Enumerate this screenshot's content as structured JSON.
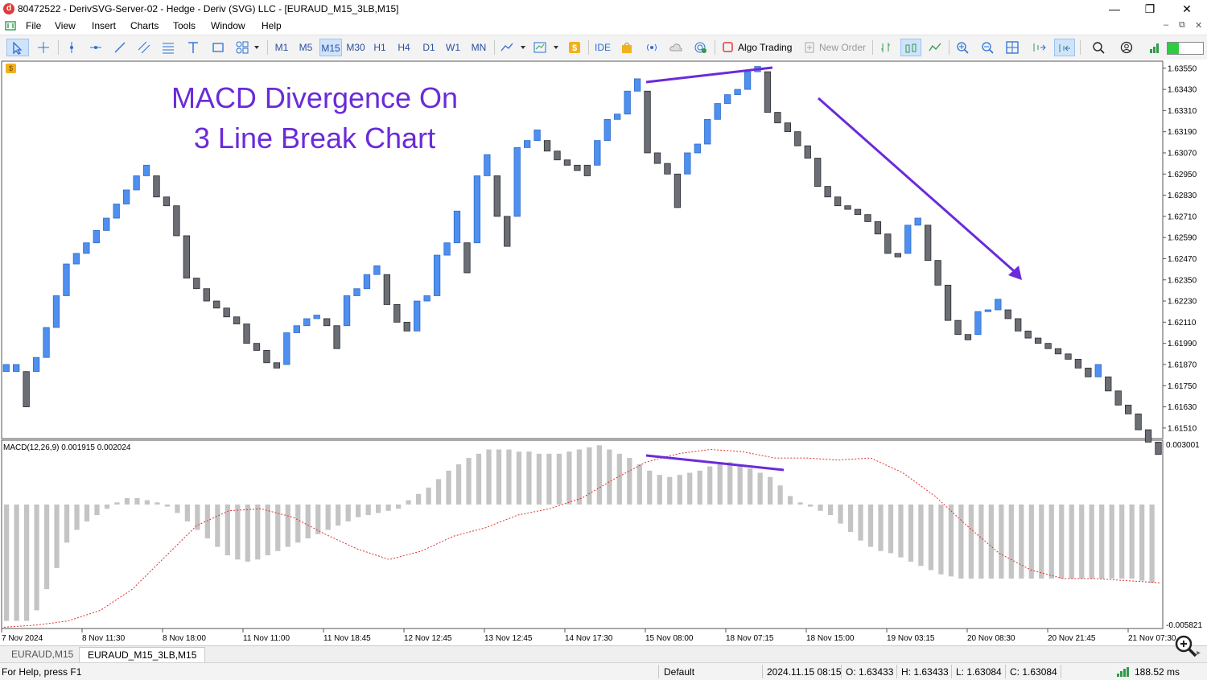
{
  "window": {
    "title": "80472522 - DerivSVG-Server-02 - Hedge - Deriv (SVG) LLC - [EURAUD_M15_3LB,M15]",
    "app_icon_letter": "d",
    "minimize": "—",
    "restore": "❐",
    "close": "✕"
  },
  "menu": {
    "items": [
      "File",
      "View",
      "Insert",
      "Charts",
      "Tools",
      "Window",
      "Help"
    ],
    "mdi_minimize": "–",
    "mdi_restore": "⧉",
    "mdi_close": "✕"
  },
  "toolbar": {
    "timeframes": [
      "M1",
      "M5",
      "M15",
      "M30",
      "H1",
      "H4",
      "D1",
      "W1",
      "MN"
    ],
    "active_timeframe": "M15",
    "ide_label": "IDE",
    "algo_trading_label": "Algo Trading",
    "new_order_label": "New Order"
  },
  "chart": {
    "annotation_line1": "MACD Divergence On",
    "annotation_line2": "3 Line Break Chart",
    "annotation_color": "#6a2bd9",
    "bull_color": "#4f8ff0",
    "bear_color": "#6c6e75",
    "price_axis": [
      "1.63550",
      "1.63430",
      "1.63310",
      "1.63190",
      "1.63070",
      "1.62950",
      "1.62830",
      "1.62710",
      "1.62590",
      "1.62470",
      "1.62350",
      "1.62230",
      "1.62110",
      "1.61990",
      "1.61870",
      "1.61750",
      "1.61630",
      "1.61510"
    ],
    "macd_label": "MACD(12,26,9) 0.001915 0.002024",
    "macd_axis_top": "0.003001",
    "macd_axis_bottom": "-0.005821",
    "time_axis": [
      "7 Nov 2024",
      "8 Nov 11:30",
      "8 Nov 18:00",
      "11 Nov 11:00",
      "11 Nov 18:45",
      "12 Nov 12:45",
      "13 Nov 12:45",
      "14 Nov 17:30",
      "15 Nov 08:00",
      "18 Nov 07:15",
      "18 Nov 15:00",
      "19 Nov 03:15",
      "20 Nov 08:30",
      "20 Nov 21:45",
      "21 Nov 07:30"
    ]
  },
  "chart_data": {
    "type": "3 line break candlestick with MACD histogram",
    "price_range": [
      1.6145,
      1.6359
    ],
    "bricks": [
      {
        "o": 1.6183,
        "c": 1.6187,
        "dir": "up"
      },
      {
        "o": 1.6187,
        "c": 1.6183,
        "dir": "up"
      },
      {
        "o": 1.6183,
        "c": 1.6163,
        "dir": "down"
      },
      {
        "o": 1.6183,
        "c": 1.6191,
        "dir": "up"
      },
      {
        "o": 1.6191,
        "c": 1.6208,
        "dir": "up"
      },
      {
        "o": 1.6208,
        "c": 1.6226,
        "dir": "up"
      },
      {
        "o": 1.6226,
        "c": 1.6244,
        "dir": "up"
      },
      {
        "o": 1.6244,
        "c": 1.625,
        "dir": "up"
      },
      {
        "o": 1.625,
        "c": 1.6256,
        "dir": "up"
      },
      {
        "o": 1.6256,
        "c": 1.6263,
        "dir": "up"
      },
      {
        "o": 1.6263,
        "c": 1.627,
        "dir": "up"
      },
      {
        "o": 1.627,
        "c": 1.6278,
        "dir": "up"
      },
      {
        "o": 1.6278,
        "c": 1.6286,
        "dir": "up"
      },
      {
        "o": 1.6286,
        "c": 1.6294,
        "dir": "up"
      },
      {
        "o": 1.6294,
        "c": 1.63,
        "dir": "up"
      },
      {
        "o": 1.6294,
        "c": 1.6282,
        "dir": "down"
      },
      {
        "o": 1.6282,
        "c": 1.6277,
        "dir": "down"
      },
      {
        "o": 1.6277,
        "c": 1.626,
        "dir": "down"
      },
      {
        "o": 1.626,
        "c": 1.6236,
        "dir": "down"
      },
      {
        "o": 1.6236,
        "c": 1.623,
        "dir": "down"
      },
      {
        "o": 1.623,
        "c": 1.6223,
        "dir": "down"
      },
      {
        "o": 1.6223,
        "c": 1.6219,
        "dir": "down"
      },
      {
        "o": 1.6219,
        "c": 1.6214,
        "dir": "down"
      },
      {
        "o": 1.6214,
        "c": 1.621,
        "dir": "down"
      },
      {
        "o": 1.621,
        "c": 1.6199,
        "dir": "down"
      },
      {
        "o": 1.6199,
        "c": 1.6195,
        "dir": "down"
      },
      {
        "o": 1.6195,
        "c": 1.6188,
        "dir": "down"
      },
      {
        "o": 1.6188,
        "c": 1.6185,
        "dir": "down"
      },
      {
        "o": 1.6187,
        "c": 1.6205,
        "dir": "up"
      },
      {
        "o": 1.6205,
        "c": 1.6209,
        "dir": "up"
      },
      {
        "o": 1.6209,
        "c": 1.6213,
        "dir": "up"
      },
      {
        "o": 1.6213,
        "c": 1.6215,
        "dir": "up"
      },
      {
        "o": 1.6213,
        "c": 1.6209,
        "dir": "down"
      },
      {
        "o": 1.6209,
        "c": 1.6196,
        "dir": "down"
      },
      {
        "o": 1.6209,
        "c": 1.6226,
        "dir": "up"
      },
      {
        "o": 1.6226,
        "c": 1.623,
        "dir": "up"
      },
      {
        "o": 1.623,
        "c": 1.6238,
        "dir": "up"
      },
      {
        "o": 1.6238,
        "c": 1.6243,
        "dir": "up"
      },
      {
        "o": 1.6238,
        "c": 1.6221,
        "dir": "down"
      },
      {
        "o": 1.6221,
        "c": 1.6211,
        "dir": "down"
      },
      {
        "o": 1.6211,
        "c": 1.6206,
        "dir": "down"
      },
      {
        "o": 1.6206,
        "c": 1.6223,
        "dir": "up"
      },
      {
        "o": 1.6223,
        "c": 1.6226,
        "dir": "up"
      },
      {
        "o": 1.6226,
        "c": 1.6249,
        "dir": "up"
      },
      {
        "o": 1.6249,
        "c": 1.6256,
        "dir": "up"
      },
      {
        "o": 1.6256,
        "c": 1.6274,
        "dir": "up"
      },
      {
        "o": 1.6256,
        "c": 1.6239,
        "dir": "down"
      },
      {
        "o": 1.6256,
        "c": 1.6294,
        "dir": "up"
      },
      {
        "o": 1.6294,
        "c": 1.6306,
        "dir": "up"
      },
      {
        "o": 1.6294,
        "c": 1.6271,
        "dir": "down"
      },
      {
        "o": 1.6271,
        "c": 1.6254,
        "dir": "down"
      },
      {
        "o": 1.6271,
        "c": 1.631,
        "dir": "up"
      },
      {
        "o": 1.631,
        "c": 1.6314,
        "dir": "up"
      },
      {
        "o": 1.6314,
        "c": 1.632,
        "dir": "up"
      },
      {
        "o": 1.6314,
        "c": 1.6308,
        "dir": "down"
      },
      {
        "o": 1.6308,
        "c": 1.6303,
        "dir": "down"
      },
      {
        "o": 1.6303,
        "c": 1.63,
        "dir": "down"
      },
      {
        "o": 1.63,
        "c": 1.6297,
        "dir": "down"
      },
      {
        "o": 1.63,
        "c": 1.6294,
        "dir": "down"
      },
      {
        "o": 1.63,
        "c": 1.6314,
        "dir": "up"
      },
      {
        "o": 1.6314,
        "c": 1.6326,
        "dir": "up"
      },
      {
        "o": 1.6326,
        "c": 1.6329,
        "dir": "up"
      },
      {
        "o": 1.6329,
        "c": 1.6342,
        "dir": "up"
      },
      {
        "o": 1.6342,
        "c": 1.6349,
        "dir": "up"
      },
      {
        "o": 1.6342,
        "c": 1.6307,
        "dir": "down"
      },
      {
        "o": 1.6307,
        "c": 1.6301,
        "dir": "down"
      },
      {
        "o": 1.6301,
        "c": 1.6295,
        "dir": "down"
      },
      {
        "o": 1.6295,
        "c": 1.6276,
        "dir": "down"
      },
      {
        "o": 1.6295,
        "c": 1.6307,
        "dir": "up"
      },
      {
        "o": 1.6307,
        "c": 1.6312,
        "dir": "up"
      },
      {
        "o": 1.6312,
        "c": 1.6326,
        "dir": "up"
      },
      {
        "o": 1.6326,
        "c": 1.6335,
        "dir": "up"
      },
      {
        "o": 1.6335,
        "c": 1.634,
        "dir": "up"
      },
      {
        "o": 1.634,
        "c": 1.6343,
        "dir": "up"
      },
      {
        "o": 1.6343,
        "c": 1.6353,
        "dir": "up"
      },
      {
        "o": 1.6353,
        "c": 1.6356,
        "dir": "up"
      },
      {
        "o": 1.6353,
        "c": 1.633,
        "dir": "down"
      },
      {
        "o": 1.633,
        "c": 1.6324,
        "dir": "down"
      },
      {
        "o": 1.6324,
        "c": 1.6319,
        "dir": "down"
      },
      {
        "o": 1.6319,
        "c": 1.6311,
        "dir": "down"
      },
      {
        "o": 1.6311,
        "c": 1.6304,
        "dir": "down"
      },
      {
        "o": 1.6304,
        "c": 1.6288,
        "dir": "down"
      },
      {
        "o": 1.6288,
        "c": 1.6282,
        "dir": "down"
      },
      {
        "o": 1.6282,
        "c": 1.6277,
        "dir": "down"
      },
      {
        "o": 1.6277,
        "c": 1.6275,
        "dir": "down"
      },
      {
        "o": 1.6275,
        "c": 1.6272,
        "dir": "down"
      },
      {
        "o": 1.6272,
        "c": 1.6268,
        "dir": "down"
      },
      {
        "o": 1.6268,
        "c": 1.6261,
        "dir": "down"
      },
      {
        "o": 1.6261,
        "c": 1.625,
        "dir": "down"
      },
      {
        "o": 1.625,
        "c": 1.6248,
        "dir": "down"
      },
      {
        "o": 1.625,
        "c": 1.6266,
        "dir": "up"
      },
      {
        "o": 1.6266,
        "c": 1.627,
        "dir": "up"
      },
      {
        "o": 1.6266,
        "c": 1.6246,
        "dir": "down"
      },
      {
        "o": 1.6246,
        "c": 1.6232,
        "dir": "down"
      },
      {
        "o": 1.6232,
        "c": 1.6212,
        "dir": "down"
      },
      {
        "o": 1.6212,
        "c": 1.6204,
        "dir": "down"
      },
      {
        "o": 1.6204,
        "c": 1.6201,
        "dir": "down"
      },
      {
        "o": 1.6204,
        "c": 1.6217,
        "dir": "up"
      },
      {
        "o": 1.6217,
        "c": 1.6218,
        "dir": "up"
      },
      {
        "o": 1.6218,
        "c": 1.6224,
        "dir": "up"
      },
      {
        "o": 1.6218,
        "c": 1.6213,
        "dir": "down"
      },
      {
        "o": 1.6213,
        "c": 1.6206,
        "dir": "down"
      },
      {
        "o": 1.6206,
        "c": 1.6202,
        "dir": "down"
      },
      {
        "o": 1.6202,
        "c": 1.6199,
        "dir": "down"
      },
      {
        "o": 1.6199,
        "c": 1.6196,
        "dir": "down"
      },
      {
        "o": 1.6196,
        "c": 1.6193,
        "dir": "down"
      },
      {
        "o": 1.6193,
        "c": 1.619,
        "dir": "down"
      },
      {
        "o": 1.619,
        "c": 1.6185,
        "dir": "down"
      },
      {
        "o": 1.6185,
        "c": 1.618,
        "dir": "down"
      },
      {
        "o": 1.618,
        "c": 1.6187,
        "dir": "up"
      },
      {
        "o": 1.618,
        "c": 1.6172,
        "dir": "down"
      },
      {
        "o": 1.6172,
        "c": 1.6164,
        "dir": "down"
      },
      {
        "o": 1.6164,
        "c": 1.6159,
        "dir": "down"
      },
      {
        "o": 1.6159,
        "c": 1.615,
        "dir": "down"
      },
      {
        "o": 1.615,
        "c": 1.6143,
        "dir": "down"
      },
      {
        "o": 1.6143,
        "c": 1.6136,
        "dir": "down"
      }
    ],
    "macd_range": [
      -0.005821,
      0.003001
    ],
    "macd_hist": [
      -0.0055,
      -0.0055,
      -0.0055,
      -0.005,
      -0.004,
      -0.003,
      -0.0018,
      -0.0012,
      -0.0008,
      -0.0005,
      -0.0002,
      0.0001,
      0.0003,
      0.0003,
      0.0002,
      0.0001,
      -0.0001,
      -0.0004,
      -0.0008,
      -0.0012,
      -0.0016,
      -0.002,
      -0.0024,
      -0.0026,
      -0.0027,
      -0.0026,
      -0.0024,
      -0.0022,
      -0.002,
      -0.0018,
      -0.0016,
      -0.0014,
      -0.0012,
      -0.001,
      -0.0008,
      -0.0006,
      -0.0005,
      -0.0004,
      -0.0003,
      -0.0002,
      0.0002,
      0.0005,
      0.0008,
      0.0012,
      0.0016,
      0.0019,
      0.0022,
      0.0024,
      0.0026,
      0.0026,
      0.0026,
      0.0025,
      0.0025,
      0.0024,
      0.0024,
      0.0024,
      0.0025,
      0.0026,
      0.0027,
      0.0028,
      0.0026,
      0.0024,
      0.0022,
      0.0019,
      0.0016,
      0.0014,
      0.0013,
      0.0014,
      0.0015,
      0.0016,
      0.0018,
      0.0019,
      0.002,
      0.0019,
      0.0017,
      0.0015,
      0.0013,
      0.0009,
      0.0004,
      0.0001,
      -0.0001,
      -0.0003,
      -0.0005,
      -0.0009,
      -0.0013,
      -0.0017,
      -0.002,
      -0.0022,
      -0.0023,
      -0.0025,
      -0.0027,
      -0.0029,
      -0.0031,
      -0.0033,
      -0.0034,
      -0.0035,
      -0.0035,
      -0.0035,
      -0.0035,
      -0.0035,
      -0.0035,
      -0.0035,
      -0.0035,
      -0.0035,
      -0.0035,
      -0.0035,
      -0.0035,
      -0.0035,
      -0.0035,
      -0.0035,
      -0.0035,
      -0.0035,
      -0.0035,
      -0.0036,
      -0.0037
    ],
    "signal_line": [
      -0.0058,
      -0.0057,
      -0.0055,
      -0.005,
      -0.004,
      -0.0025,
      -0.001,
      -0.0003,
      -0.0002,
      -0.0006,
      -0.0014,
      -0.0021,
      -0.0026,
      -0.0022,
      -0.0015,
      -0.0011,
      -0.0005,
      -0.0002,
      0.0003,
      0.0012,
      0.002,
      0.0024,
      0.0026,
      0.0025,
      0.0022,
      0.0022,
      0.0021,
      0.0022,
      0.0015,
      0.0004,
      -0.001,
      -0.0023,
      -0.0031,
      -0.0035,
      -0.0035,
      -0.0036,
      -0.0037
    ]
  },
  "tabs": [
    "EURAUD,M15",
    "EURAUD_M15_3LB,M15"
  ],
  "active_tab": "EURAUD_M15_3LB,M15",
  "status": {
    "help": "For Help, press F1",
    "profile": "Default",
    "datetime": "2024.11.15 08:15",
    "open": "O: 1.63433",
    "high": "H: 1.63433",
    "low": "L: 1.63084",
    "close": "C: 1.63084",
    "ping": "188.52 ms"
  }
}
